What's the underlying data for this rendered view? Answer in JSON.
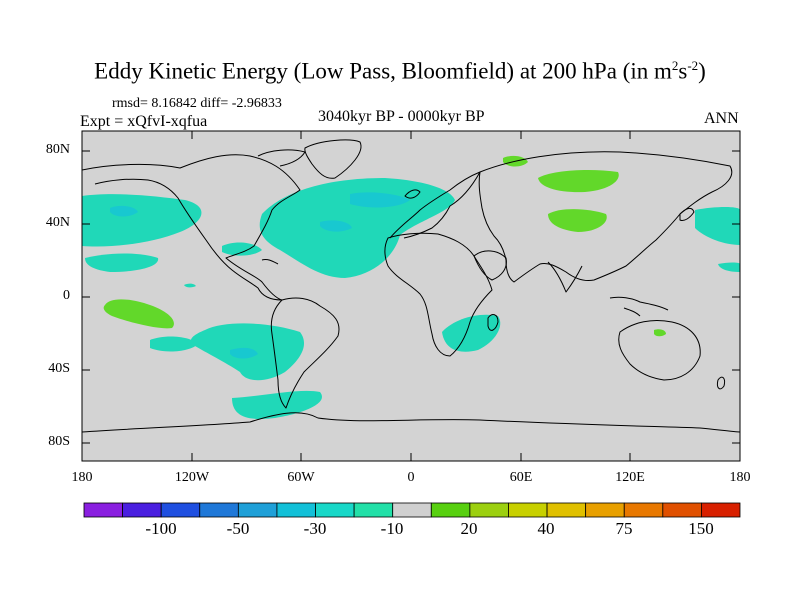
{
  "title": {
    "main": "Eddy Kinetic Energy (Low Pass, Bloomfield) at 200 hPa (in m",
    "sup1": "2",
    "mid": "s",
    "sup2": "-2",
    "close": ")"
  },
  "stats": "rmsd= 8.16842 diff= -2.96833",
  "expt": "Expt = xQfvI-xqfua",
  "period": "3040kyr BP - 0000kyr BP",
  "season": "ANN",
  "lat_labels": [
    "80N",
    "40N",
    "0",
    "40S",
    "80S"
  ],
  "lon_labels": [
    "180",
    "120W",
    "60W",
    "0",
    "60E",
    "120E",
    "180"
  ],
  "colorbar": {
    "colors": [
      "#8a1fe0",
      "#4a1fe0",
      "#1f4fe0",
      "#1f78d8",
      "#1fa0d8",
      "#12c0d8",
      "#18d8c8",
      "#22e0a8",
      "#d0d0d0",
      "#58d010",
      "#9cd010",
      "#c8d000",
      "#e0c000",
      "#e8a000",
      "#e87800",
      "#e05000",
      "#d82000"
    ],
    "labels": [
      "-100",
      "-50",
      "-30",
      "-10",
      "20",
      "40",
      "75",
      "150"
    ]
  },
  "map": {
    "background": "#d3d3d3",
    "negative_color": "#20d8b8",
    "negative_dark_color": "#18c8d0",
    "positive_color": "#62d82a"
  }
}
